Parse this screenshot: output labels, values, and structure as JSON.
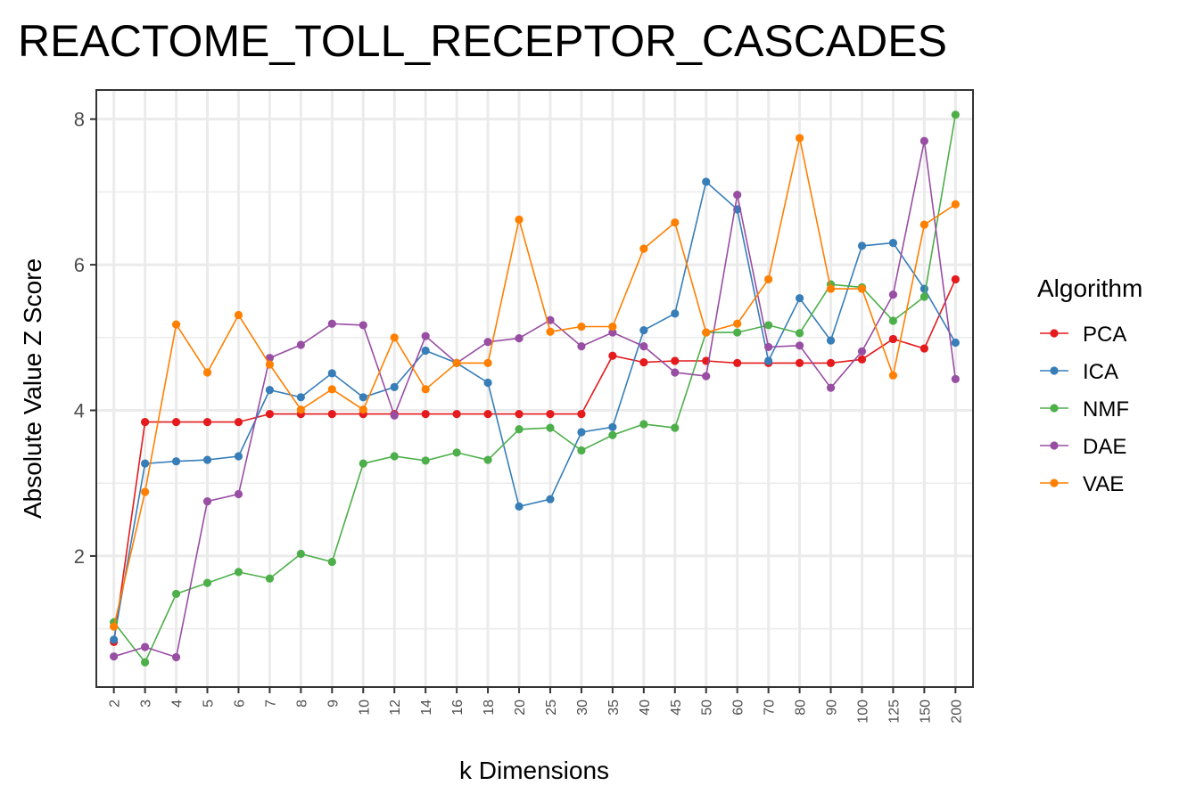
{
  "chart_data": {
    "type": "line",
    "title": "REACTOME_TOLL_RECEPTOR_CASCADES",
    "xlabel": "k Dimensions",
    "ylabel": "Absolute Value Z Score",
    "categories": [
      "2",
      "3",
      "4",
      "5",
      "6",
      "7",
      "8",
      "9",
      "10",
      "12",
      "14",
      "16",
      "18",
      "20",
      "25",
      "30",
      "35",
      "40",
      "45",
      "50",
      "60",
      "70",
      "80",
      "90",
      "100",
      "125",
      "150",
      "200"
    ],
    "ylim": [
      0.2,
      8.4
    ],
    "yticks": [
      2,
      4,
      6,
      8
    ],
    "grid": true,
    "legend": {
      "title": "Algorithm",
      "position": "right"
    },
    "series": [
      {
        "name": "PCA",
        "color": "#e41a1c",
        "values": [
          0.82,
          3.84,
          3.84,
          3.84,
          3.84,
          3.95,
          3.95,
          3.95,
          3.95,
          3.95,
          3.95,
          3.95,
          3.95,
          3.95,
          3.95,
          3.95,
          4.75,
          4.66,
          4.68,
          4.68,
          4.65,
          4.65,
          4.65,
          4.65,
          4.7,
          4.98,
          4.85,
          5.8
        ]
      },
      {
        "name": "ICA",
        "color": "#377eb8",
        "values": [
          0.85,
          3.27,
          3.3,
          3.32,
          3.37,
          4.28,
          4.18,
          4.51,
          4.18,
          4.32,
          4.82,
          4.65,
          4.38,
          2.68,
          2.78,
          3.7,
          3.77,
          5.1,
          5.33,
          7.14,
          6.76,
          4.68,
          5.54,
          4.96,
          6.26,
          6.3,
          5.67,
          4.93
        ]
      },
      {
        "name": "NMF",
        "color": "#4daf4a",
        "values": [
          1.09,
          0.54,
          1.48,
          1.63,
          1.78,
          1.69,
          2.03,
          1.92,
          3.27,
          3.37,
          3.31,
          3.42,
          3.32,
          3.74,
          3.76,
          3.45,
          3.66,
          3.81,
          3.76,
          5.07,
          5.07,
          5.17,
          5.06,
          5.73,
          5.69,
          5.23,
          5.56,
          8.06
        ]
      },
      {
        "name": "DAE",
        "color": "#984ea3",
        "values": [
          0.62,
          0.75,
          0.61,
          2.75,
          2.85,
          4.72,
          4.9,
          5.19,
          5.17,
          3.93,
          5.02,
          4.65,
          4.94,
          4.99,
          5.24,
          4.88,
          5.07,
          4.88,
          4.52,
          4.47,
          6.96,
          4.87,
          4.89,
          4.31,
          4.81,
          5.59,
          7.7,
          4.43
        ]
      },
      {
        "name": "VAE",
        "color": "#ff7f00",
        "values": [
          1.03,
          2.88,
          5.18,
          4.52,
          5.31,
          4.63,
          4.01,
          4.29,
          4.01,
          5.0,
          4.29,
          4.65,
          4.65,
          6.62,
          5.08,
          5.15,
          5.15,
          6.22,
          6.58,
          5.07,
          5.19,
          5.8,
          7.74,
          5.67,
          5.67,
          4.48,
          6.55,
          6.83
        ]
      }
    ]
  }
}
